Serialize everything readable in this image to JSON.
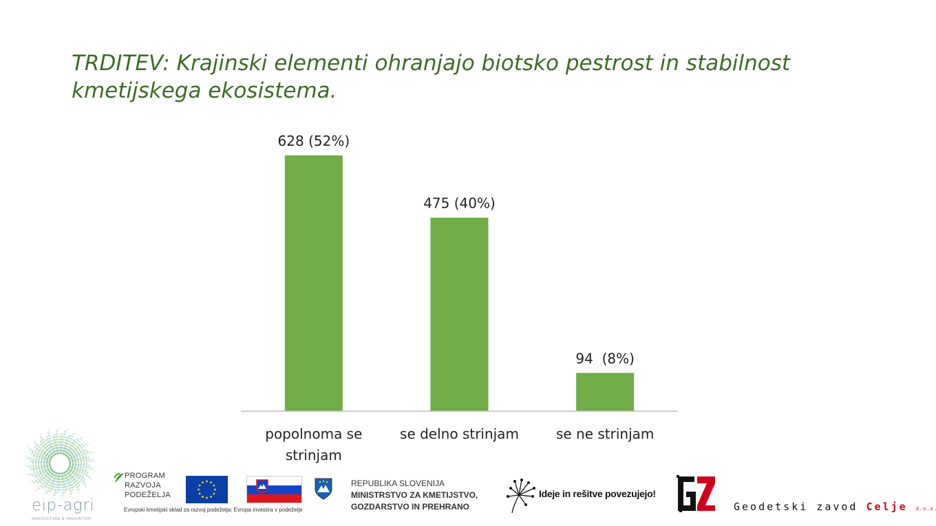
{
  "title_line1": "TRDITEV: Krajinski elementi ohranjajo biotsko pestrost in stabilnost",
  "title_line2": "kmetijskega ekosistema.",
  "colors": {
    "title": "#3d6b26",
    "bar": "#70ad47",
    "axis": "#bfbfbf",
    "text": "#222222"
  },
  "chart_data": {
    "type": "bar",
    "categories": [
      [
        "popolnoma se",
        "strinjam"
      ],
      [
        "se delno strinjam"
      ],
      [
        "se ne strinjam"
      ]
    ],
    "values": [
      628,
      475,
      94
    ],
    "data_labels": [
      "628 (52%)",
      "475 (40%)",
      "94  (8%)"
    ],
    "ylim": [
      0,
      700
    ],
    "grid": false,
    "legend": "none"
  },
  "footer": {
    "eip_logo": "eip-agri",
    "eip_tagline": "AGRICULTURE & INNOVATION",
    "program_lines": [
      "PROGRAM",
      "RAZVOJA",
      "PODEŽELJA"
    ],
    "fund_caption": "Evropski kmetijski sklad za razvoj podeželja: Evropa investira v podeželje",
    "ministry_line1": "REPUBLIKA SLOVENIJA",
    "ministry_line2": "MINISTRSTVO ZA KMETIJSTVO,",
    "ministry_line3": "GOZDARSTVO IN PREHRANO",
    "ideje": "Ideje in rešitve povezujejo!",
    "gz_company": "Geodetski zavod",
    "gz_city": "Celje",
    "gz_suffix": "d.o.o."
  }
}
